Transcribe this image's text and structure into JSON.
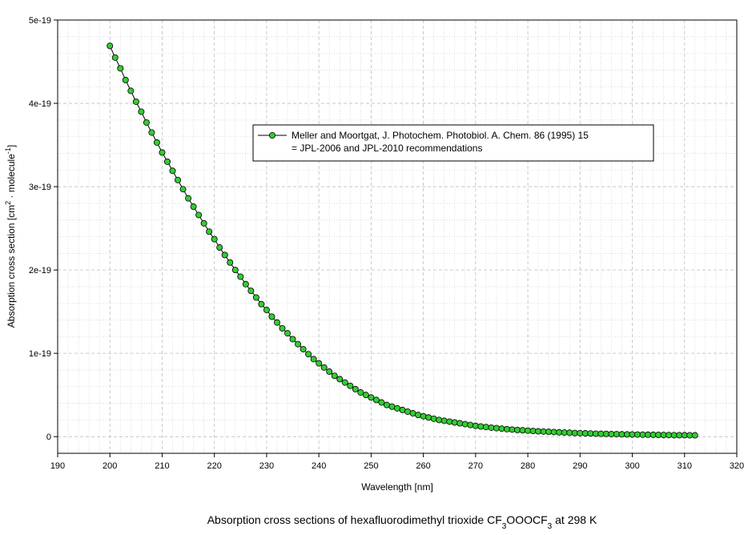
{
  "chart_data": {
    "type": "line",
    "title": "Absorption cross sections of hexafluorodimethyl trioxide CF",
    "title_sub1": "3",
    "title_mid": "OOOCF",
    "title_sub2": "3",
    "title_end": " at 298 K",
    "xlabel": "Wavelength [nm]",
    "ylabel_main": "Absorption cross section [cm",
    "ylabel_sup1": "2",
    "ylabel_mid": " · molecule",
    "ylabel_sup2": "-1",
    "ylabel_end": "]",
    "xlim": [
      190,
      320
    ],
    "ylim": [
      -2e-20,
      5e-19
    ],
    "x_ticks": [
      190,
      200,
      210,
      220,
      230,
      240,
      250,
      260,
      270,
      280,
      290,
      300,
      310,
      320
    ],
    "x_tick_labels": [
      "190",
      "200",
      "210",
      "220",
      "230",
      "240",
      "250",
      "260",
      "270",
      "280",
      "290",
      "300",
      "310",
      "320"
    ],
    "y_ticks": [
      0,
      1e-19,
      2e-19,
      3e-19,
      4e-19,
      5e-19
    ],
    "y_tick_labels": [
      "0",
      "1e-19",
      "2e-19",
      "3e-19",
      "4e-19",
      "5e-19"
    ],
    "grid": true,
    "legend_position": "upper-center",
    "legend_line1": "Meller and Moortgat, J. Photochem. Photobiol. A. Chem. 86 (1995) 15",
    "legend_line2": "= JPL-2006 and JPL-2010 recommendations",
    "marker_color": "#33cc33",
    "line_color": "#000000",
    "series": [
      {
        "x": [
          200,
          201,
          202,
          203,
          204,
          205,
          206,
          207,
          208,
          209,
          210,
          211,
          212,
          213,
          214,
          215,
          216,
          217,
          218,
          219,
          220,
          221,
          222,
          223,
          224,
          225,
          226,
          227,
          228,
          229,
          230,
          231,
          232,
          233,
          234,
          235,
          236,
          237,
          238,
          239,
          240,
          241,
          242,
          243,
          244,
          245,
          246,
          247,
          248,
          249,
          250,
          251,
          252,
          253,
          254,
          255,
          256,
          257,
          258,
          259,
          260,
          261,
          262,
          263,
          264,
          265,
          266,
          267,
          268,
          269,
          270,
          271,
          272,
          273,
          274,
          275,
          276,
          277,
          278,
          279,
          280,
          281,
          282,
          283,
          284,
          285,
          286,
          287,
          288,
          289,
          290,
          291,
          292,
          293,
          294,
          295,
          296,
          297,
          298,
          299,
          300,
          301,
          302,
          303,
          304,
          305,
          306,
          307,
          308,
          309,
          310,
          311,
          312
        ],
        "y": [
          4.69e-19,
          4.55e-19,
          4.42e-19,
          4.28e-19,
          4.15e-19,
          4.02e-19,
          3.9e-19,
          3.77e-19,
          3.65e-19,
          3.53e-19,
          3.41e-19,
          3.3e-19,
          3.19e-19,
          3.08e-19,
          2.97e-19,
          2.86e-19,
          2.76e-19,
          2.66e-19,
          2.56e-19,
          2.46e-19,
          2.37e-19,
          2.27e-19,
          2.18e-19,
          2.09e-19,
          2e-19,
          1.92e-19,
          1.83e-19,
          1.75e-19,
          1.67e-19,
          1.59e-19,
          1.52e-19,
          1.44e-19,
          1.37e-19,
          1.3e-19,
          1.24e-19,
          1.17e-19,
          1.11e-19,
          1.05e-19,
          9.9e-20,
          9.3e-20,
          8.8e-20,
          8.3e-20,
          7.8e-20,
          7.3e-20,
          6.9e-20,
          6.5e-20,
          6.1e-20,
          5.7e-20,
          5.3e-20,
          5e-20,
          4.7e-20,
          4.4e-20,
          4.1e-20,
          3.8e-20,
          3.6e-20,
          3.4e-20,
          3.2e-20,
          3e-20,
          2.8e-20,
          2.6e-20,
          2.45e-20,
          2.3e-20,
          2.15e-20,
          2e-20,
          1.9e-20,
          1.8e-20,
          1.7e-20,
          1.6e-20,
          1.5e-20,
          1.4e-20,
          1.3e-20,
          1.22e-20,
          1.15e-20,
          1.08e-20,
          1.02e-20,
          9.6e-21,
          9e-21,
          8.5e-21,
          8e-21,
          7.6e-21,
          7.2e-21,
          6.8e-21,
          6.4e-21,
          6.1e-21,
          5.8e-21,
          5.5e-21,
          5.2e-21,
          4.9e-21,
          4.7e-21,
          4.4e-21,
          4.2e-21,
          4e-21,
          3.8e-21,
          3.6e-21,
          3.4e-21,
          3.3e-21,
          3.1e-21,
          3e-21,
          2.8e-21,
          2.7e-21,
          2.6e-21,
          2.5e-21,
          2.4e-21,
          2.3e-21,
          2.2e-21,
          2.1e-21,
          2e-21,
          1.9e-21,
          1.8e-21,
          1.75e-21,
          1.7e-21,
          1.65e-21,
          1.6e-21
        ]
      }
    ]
  }
}
